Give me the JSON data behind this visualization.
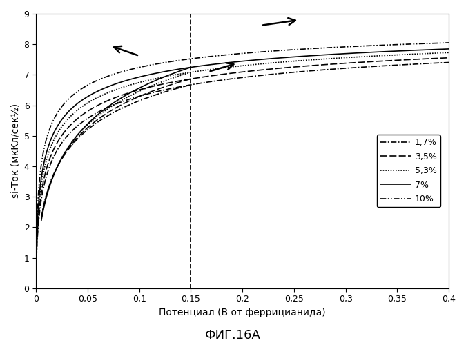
{
  "title": "ФИГ.16А",
  "xlabel": "Потенциал (В от феррицианида)",
  "ylabel": "si-Ток (мкКл/сек½)",
  "xlim": [
    0,
    0.4
  ],
  "ylim": [
    0,
    9
  ],
  "xticks": [
    0,
    0.05,
    0.1,
    0.15,
    0.2,
    0.25,
    0.3,
    0.35,
    0.4
  ],
  "xtick_labels": [
    "0",
    "0,05",
    "0,1",
    "0,15",
    "0,2",
    "0,25",
    "0,3",
    "0,35",
    "0,4"
  ],
  "yticks": [
    0,
    1,
    2,
    3,
    4,
    5,
    6,
    7,
    8,
    9
  ],
  "vline_x": 0.15,
  "curves": [
    {
      "label": "1,7%",
      "linestyle": "dashdot",
      "fwd_km": 0.018,
      "fwd_sat": 8.75,
      "ret_km": 0.045,
      "ret_sat": 8.75,
      "has_return": true
    },
    {
      "label": "3,5%",
      "linestyle": "dashed",
      "fwd_km": 0.015,
      "fwd_sat": 8.8,
      "ret_km": 0.055,
      "ret_sat": 8.8,
      "has_return": true
    },
    {
      "label": "5,3%",
      "linestyle": "dotted",
      "fwd_km": 0.012,
      "fwd_sat": 8.85,
      "ret_km": 0.065,
      "ret_sat": 8.85,
      "has_return": true
    },
    {
      "label": "7%",
      "linestyle": "solid",
      "fwd_km": 0.01,
      "fwd_sat": 8.88,
      "ret_km": 0.08,
      "ret_sat": 8.88,
      "has_return": true
    },
    {
      "label": "10%",
      "linestyle": "dashdotdot",
      "fwd_km": 0.007,
      "fwd_sat": 8.92,
      "ret_km": null,
      "ret_sat": null,
      "has_return": false
    }
  ],
  "background_color": "#ffffff"
}
